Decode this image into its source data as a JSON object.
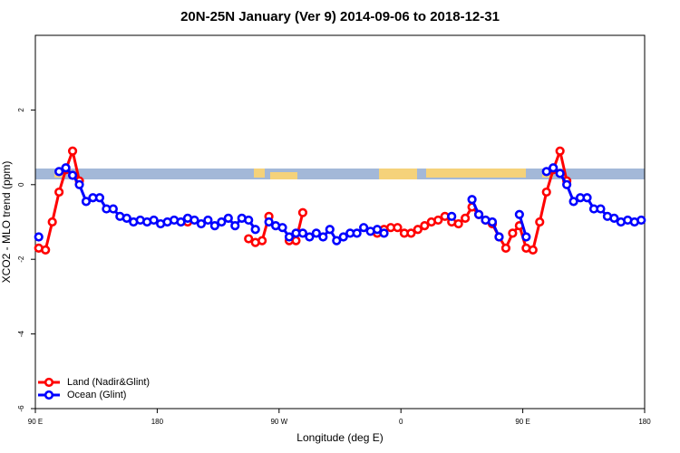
{
  "chart_data": {
    "type": "line",
    "title": "20N-25N January (Ver 9)   2014-09-06 to 2018-12-31",
    "x_label": "Longitude (deg E)",
    "y_label": "XCO2 - MLO trend (ppm)",
    "xlim": [
      90,
      540
    ],
    "xticks": [
      {
        "value": 90,
        "label": "90 E"
      },
      180,
      {
        "value": 270,
        "label": "90 W"
      },
      {
        "value": 360,
        "label": "0"
      },
      {
        "value": 450,
        "label": "90 E"
      },
      {
        "value": 540,
        "label": "180"
      }
    ],
    "ylim": [
      -6,
      4
    ],
    "yticks": [
      -6,
      -4,
      -2,
      0,
      2
    ],
    "legend": "bottom-left",
    "series": [
      {
        "name": "Land (Nadir&Glint)",
        "color": "#ff0000",
        "x": [
          92.5,
          97.5,
          102.5,
          107.5,
          112.5,
          117.5,
          122.5,
          127.5,
          202.5,
          207.5,
          247.5,
          252.5,
          257.5,
          262.5,
          267.5,
          277.5,
          282.5,
          287.5,
          292.5,
          342.5,
          347.5,
          352.5,
          357.5,
          362.5,
          367.5,
          372.5,
          377.5,
          382.5,
          387.5,
          392.5,
          397.5,
          402.5,
          407.5,
          412.5,
          417.5,
          422.5,
          427.5,
          432.5,
          437.5,
          442.5,
          447.5,
          452.5,
          457.5,
          462.5,
          467.5,
          472.5,
          477.5,
          482.5
        ],
        "values": [
          -1.7,
          -1.75,
          -1.0,
          -0.2,
          0.4,
          0.9,
          0.1,
          null,
          -1.0,
          null,
          -1.45,
          -1.55,
          -1.5,
          -0.85,
          null,
          -1.5,
          -1.5,
          -0.75,
          null,
          -1.3,
          -1.2,
          -1.15,
          -1.15,
          -1.3,
          -1.3,
          -1.2,
          -1.1,
          -1.0,
          -0.95,
          -0.85,
          -1.0,
          -1.05,
          -0.9,
          -0.6,
          -0.8,
          -0.95,
          -1.05,
          -1.4,
          -1.7,
          -1.3,
          -1.1,
          -1.7,
          -1.75,
          -1.0,
          -0.2,
          0.4,
          0.9,
          0.1
        ]
      },
      {
        "name": "Ocean (Glint)",
        "color": "#0000ff",
        "x": [
          92.5,
          97.5,
          107.5,
          112.5,
          117.5,
          122.5,
          127.5,
          132.5,
          137.5,
          142.5,
          147.5,
          152.5,
          157.5,
          162.5,
          167.5,
          172.5,
          177.5,
          182.5,
          187.5,
          192.5,
          197.5,
          202.5,
          207.5,
          212.5,
          217.5,
          222.5,
          227.5,
          232.5,
          237.5,
          242.5,
          247.5,
          252.5,
          257.5,
          262.5,
          267.5,
          272.5,
          277.5,
          282.5,
          287.5,
          292.5,
          297.5,
          302.5,
          307.5,
          312.5,
          317.5,
          322.5,
          327.5,
          332.5,
          337.5,
          342.5,
          347.5,
          352.5,
          397.5,
          402.5,
          412.5,
          417.5,
          422.5,
          427.5,
          432.5,
          437.5,
          447.5,
          452.5,
          457.5,
          467.5,
          472.5,
          477.5,
          482.5,
          487.5,
          492.5,
          497.5,
          502.5,
          507.5,
          512.5,
          517.5,
          522.5,
          527.5,
          532.5,
          537.5
        ],
        "values": [
          -1.4,
          null,
          0.35,
          0.45,
          0.25,
          0.0,
          -0.45,
          -0.35,
          -0.35,
          -0.65,
          -0.65,
          -0.85,
          -0.9,
          -1.0,
          -0.95,
          -1.0,
          -0.95,
          -1.05,
          -1.0,
          -0.95,
          -1.0,
          -0.9,
          -0.95,
          -1.05,
          -0.95,
          -1.1,
          -1.0,
          -0.9,
          -1.1,
          -0.9,
          -0.95,
          -1.2,
          null,
          -1.0,
          -1.1,
          -1.15,
          -1.4,
          -1.3,
          -1.3,
          -1.4,
          -1.3,
          -1.4,
          -1.2,
          -1.5,
          -1.4,
          -1.3,
          -1.3,
          -1.15,
          -1.25,
          -1.2,
          -1.3,
          null,
          -0.85,
          null,
          -0.4,
          -0.8,
          -0.95,
          -1.0,
          -1.4,
          null,
          -0.8,
          -1.4,
          null,
          0.35,
          0.45,
          0.3,
          0.0,
          -0.45,
          -0.35,
          -0.35,
          -0.65,
          -0.65,
          -0.85,
          -0.9,
          -1.0,
          -0.95,
          -1.0,
          -0.95
        ]
      }
    ]
  }
}
